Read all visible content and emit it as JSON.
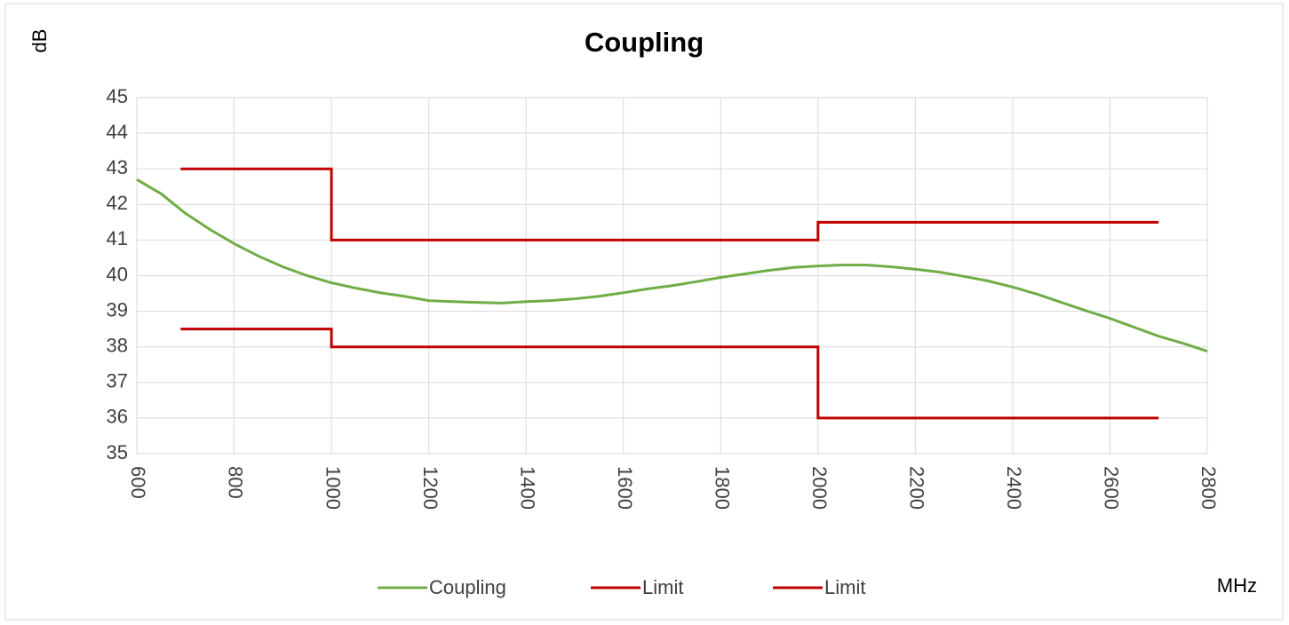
{
  "chart_data": {
    "type": "line",
    "title": "Coupling",
    "ylabel": "dB",
    "xlabel": "MHz",
    "xlim": [
      600,
      2800
    ],
    "xticks": [
      600,
      800,
      1000,
      1200,
      1400,
      1600,
      1800,
      2000,
      2200,
      2400,
      2600,
      2800
    ],
    "ylim": [
      35,
      45
    ],
    "yticks": [
      35,
      36,
      37,
      38,
      39,
      40,
      41,
      42,
      43,
      44,
      45
    ],
    "grid": true,
    "legend": "bottom",
    "series": [
      {
        "name": "Coupling",
        "color": "#70ad47",
        "x": [
          600,
          650,
          700,
          750,
          800,
          850,
          900,
          950,
          1000,
          1050,
          1100,
          1150,
          1200,
          1250,
          1300,
          1350,
          1400,
          1450,
          1500,
          1550,
          1600,
          1650,
          1700,
          1750,
          1800,
          1850,
          1900,
          1950,
          2000,
          2050,
          2100,
          2150,
          2200,
          2250,
          2300,
          2350,
          2400,
          2450,
          2500,
          2550,
          2600,
          2650,
          2700,
          2750,
          2800
        ],
        "values": [
          42.7,
          42.3,
          41.75,
          41.3,
          40.9,
          40.55,
          40.25,
          40.0,
          39.8,
          39.65,
          39.52,
          39.42,
          39.3,
          39.27,
          39.25,
          39.23,
          39.27,
          39.3,
          39.35,
          39.42,
          39.52,
          39.63,
          39.72,
          39.83,
          39.95,
          40.05,
          40.15,
          40.23,
          40.27,
          40.3,
          40.3,
          40.25,
          40.18,
          40.1,
          39.98,
          39.85,
          39.68,
          39.48,
          39.25,
          39.02,
          38.8,
          38.55,
          38.3,
          38.1,
          37.88
        ]
      },
      {
        "name": "Limit",
        "color": "#c00000",
        "x": [
          690,
          1000,
          1000,
          2000,
          2000,
          2700
        ],
        "values": [
          43,
          43,
          41,
          41,
          41.5,
          41.5
        ]
      },
      {
        "name": "Limit",
        "color": "#c00000",
        "x": [
          690,
          1000,
          1000,
          2000,
          2000,
          2700
        ],
        "values": [
          38.5,
          38.5,
          38,
          38,
          36,
          36
        ]
      }
    ]
  }
}
